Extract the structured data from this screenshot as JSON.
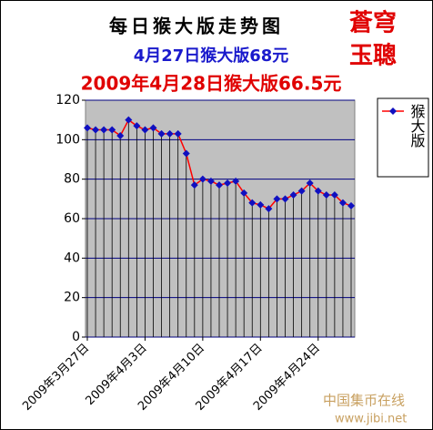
{
  "chart_data": {
    "type": "line",
    "title": "每日猴大版走势图",
    "subtitle": "4月27日猴大版68元",
    "subtitle2": "2009年4月28日猴大版66.5元",
    "annotations": [
      "蒼穹",
      "玉聰",
      "中国集币在线",
      "www.jibi.net"
    ],
    "categories": [
      "2009年3月27日",
      null,
      null,
      null,
      null,
      null,
      null,
      "2009年4月3日",
      null,
      null,
      null,
      null,
      null,
      null,
      "2009年4月10日",
      null,
      null,
      null,
      null,
      null,
      null,
      "2009年4月17日",
      null,
      null,
      null,
      null,
      null,
      null,
      "2009年4月24日",
      null,
      null,
      null,
      null
    ],
    "series": [
      {
        "name": "猴大版",
        "color": "#ff0000",
        "marker_color": "#1010c0",
        "values": [
          106,
          105,
          105,
          105,
          102,
          110,
          107,
          105,
          106,
          103,
          103,
          103,
          93,
          77,
          80,
          79,
          77,
          78,
          79,
          73,
          68,
          67,
          65,
          70,
          70,
          72,
          74,
          78,
          74,
          72,
          72,
          68,
          66.5
        ]
      }
    ],
    "ylim": [
      0,
      120
    ],
    "yticks": [
      0,
      20,
      40,
      60,
      80,
      100,
      120
    ],
    "grid": true,
    "legend": "right"
  }
}
